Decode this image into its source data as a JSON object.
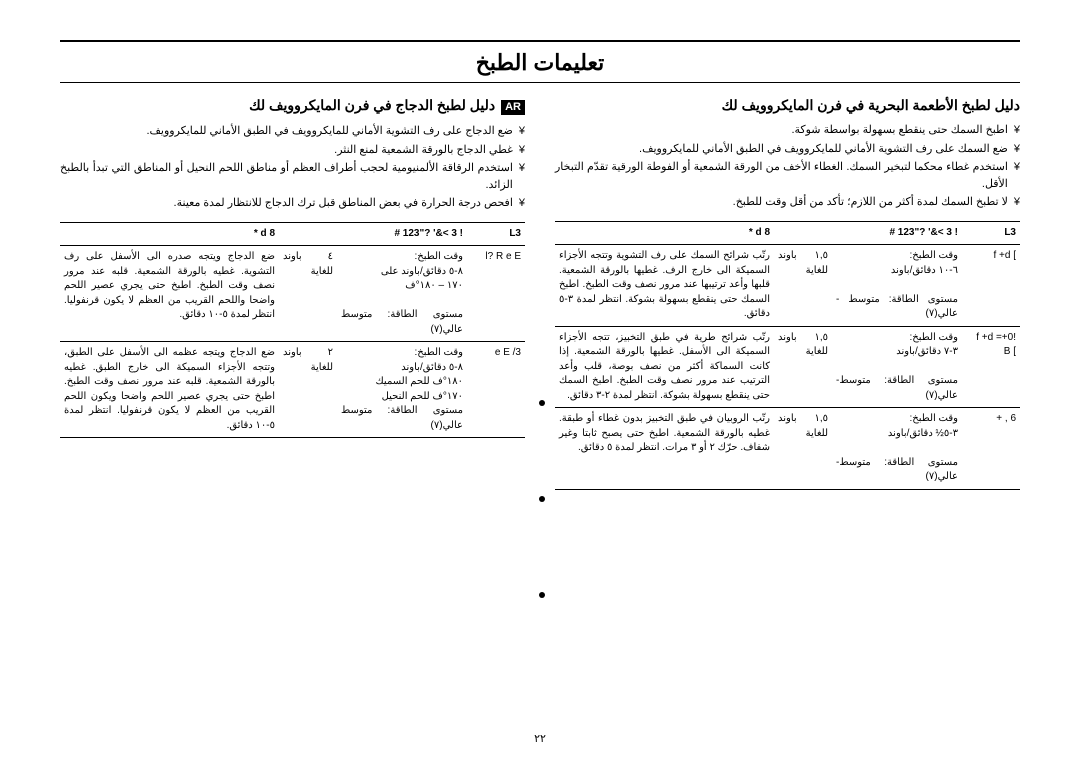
{
  "title": "تعليمات الطبخ",
  "ar_badge": "AR",
  "page_number": "٢٢",
  "right": {
    "heading": "دليل لطبخ الدجاج في فرن المايكروويف لك",
    "bullets": [
      "ضع الدجاج على رف التشوية الأماني للمايكروويف في الطبق الأماني للمايكروويف.",
      "غطي الدجاج بالورقة الشمعية لمنع النثر.",
      "استخدم الرقاقة الألمنيومية لحجب أطراف العظم أو مناطق اللحم النحيل أو المناطق التي تبدأ بالطبخ الزائد.",
      "افحص درجة الحرارة في بعض المناطق قبل ترك الدجاج للانتظار لمدة معينة."
    ],
    "table": {
      "headers": [
        "L3",
        "! 3  >&' ?\"123  #",
        "8  d *"
      ],
      "rows": [
        {
          "c1": "l? R  e E",
          "c2": "وقت الطبخ:\n٨-٥ دقائق/باوند على\n١٧٠ – ١٨٠°ف\n\nمستوى الطاقة: متوسط عالي(٧)",
          "c3": "٤ باوند للغاية",
          "c4": "ضع الدجاج ويتجه صدره الى الأسفل على رف التشوية. غطيه بالورقة الشمعية. قلبه عند مرور نصف وقت الطبخ. اطبخ حتى يجري عصير اللحم واضحا واللحم القريب من العظم لا يكون قرنفوليا. انتظر لمدة ٥-١٠ دقائق."
        },
        {
          "c1": "e E  /3",
          "c2": "وقت الطبخ:\n٨-٥ دقائق/باوند\n١٨٠°ف للحم السميك\n١٧٠°ف للحم النحيل\nمستوى الطاقة: متوسط عالي(٧)",
          "c3": "٢ باوند للغاية",
          "c4": "ضع الدجاج ويتجه عظمه الى الأسفل على الطبق، وتتجه الأجزاء السميكة الى خارج الطبق. غطيه بالورقة الشمعية. قلبه عند مرور نصف وقت الطبخ. اطبخ حتى يجري عصير اللحم واضحا ويكون اللحم القريب من العظم لا يكون قرنفوليا. انتظر لمدة ٥-١٠ دقائق."
        }
      ]
    }
  },
  "left": {
    "heading": "دليل لطبخ الأطعمة البحرية في فرن المايكروويف لك",
    "bullets": [
      "اطبخ السمك حتى ينقطع بسهولة بواسطة شوكة.",
      "ضع السمك على رف التشوية الأماني للمايكروويف في الطبق الأماني للمايكروويف.",
      "استخدم غطاء محكما لتبخير السمك. الغطاء الأخف من الورقة الشمعية أو الفوطة الورقية تقدّم التبخار الأقل.",
      "لا تطبخ السمك لمدة أكثر من اللازم؛ تأكد من أقل وقت للطبخ."
    ],
    "table": {
      "headers": [
        "L3",
        "! 3  >&' ?\"123  #",
        "8  d *"
      ],
      "rows": [
        {
          "c1": "]  f +d",
          "c2": "وقت الطبخ:\n٦-١٠ دقائق/باوند\n\nمستوى الطاقة: متوسط - عالي(٧)",
          "c3": "١,٥ باوند للغاية",
          "c4": "رتّب شرائح السمك على رف التشوية وتتجه الأجزاء السميكة الى خارج الرف. غطيها بالورقة الشمعية. قلبها وأعد ترتيبها عند مرور نصف وقت الطبخ. اطبخ السمك حتى ينقطع بسهولة بشوكة. انتظر لمدة ٣-٥ دقائق."
        },
        {
          "c1": "!0+= f +d\n] B",
          "c2": "وقت الطبخ:\n٣-٧ دقائق/باوند\n\nمستوى الطاقة: متوسط-عالي(٧)",
          "c3": "١,٥ باوند للغاية",
          "c4": "رتّب شرائح طرية في طبق التخبيز، تتجه الأجزاء السميكة الى الأسفل. غطيها بالورقة الشمعية. إذا كانت السماكة أكثر من نصف بوصة، قلب وأعد الترتيب عند مرور نصف وقت الطبخ. اطبخ السمك حتى ينقطع بسهولة بشوكة. انتظر لمدة ٢-٣ دقائق."
        },
        {
          "c1": "6 , +",
          "c2": "وقت الطبخ:\n٣-٥½ دقائق/باوند\n\nمستوى الطاقة: متوسط-عالي(٧)",
          "c3": "١,٥ باوند للغاية",
          "c4": "رتّب الروبيان في طبق التخبيز بدون غطاء أو طبقة. غطيه بالورقة الشمعية. اطبخ حتى يصبح ثابتا وغير شفاف. حرّك ٢ أو ٣ مرات. انتظر لمدة ٥ دقائق."
        }
      ]
    }
  }
}
